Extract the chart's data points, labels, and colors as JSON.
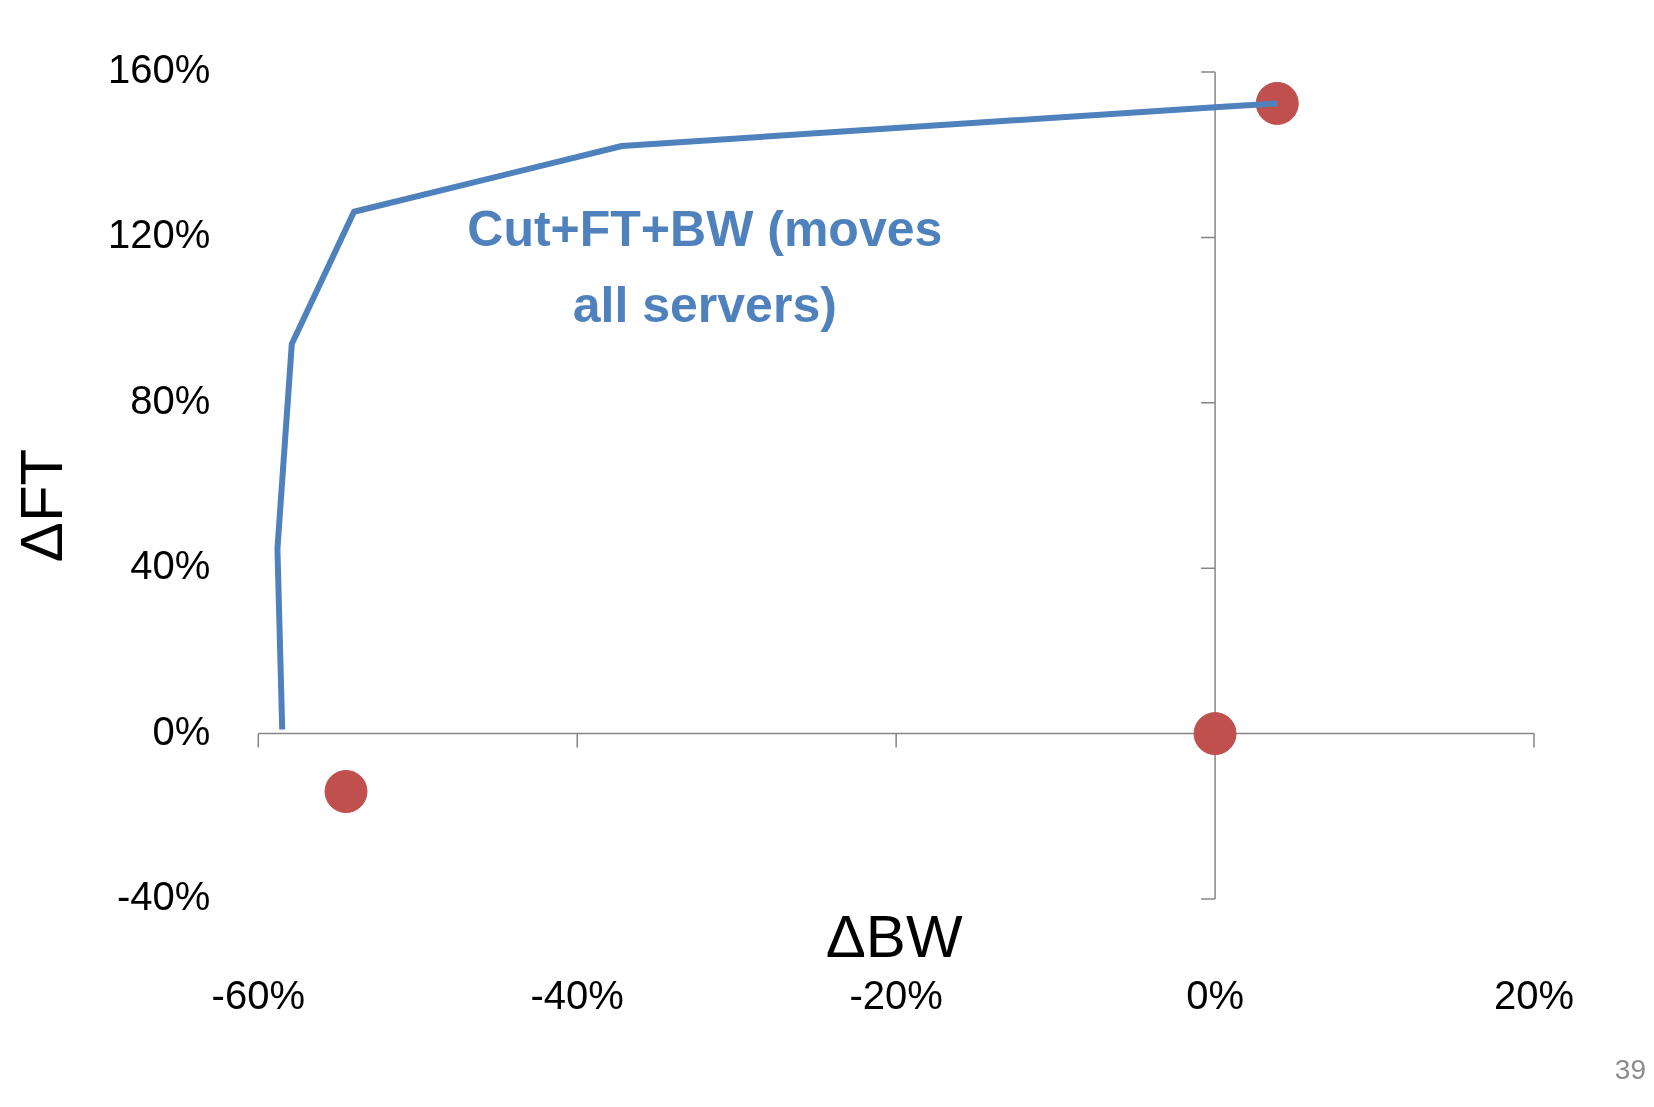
{
  "chart_data": {
    "type": "line",
    "xlabel": "ΔBW",
    "ylabel": "ΔFT",
    "xlim": [
      -60,
      20
    ],
    "xticks": [
      {
        "value": -60,
        "label": "-60%"
      },
      {
        "value": -40,
        "label": "-40%"
      },
      {
        "value": -20,
        "label": "-20%"
      },
      {
        "value": 0,
        "label": "0%"
      },
      {
        "value": 20,
        "label": "20%"
      }
    ],
    "ylim": [
      -40,
      160
    ],
    "yticks": [
      {
        "value": -40,
        "label": "-40%"
      },
      {
        "value": 0,
        "label": "0%"
      },
      {
        "value": 40,
        "label": "40%"
      },
      {
        "value": 80,
        "label": "80%"
      },
      {
        "value": 120,
        "label": "120%"
      },
      {
        "value": 160,
        "label": "160%"
      }
    ],
    "legend": false,
    "annotations": [
      "39"
    ],
    "series": [
      {
        "name": "Cut+FT+BW (moves all servers)",
        "color": "#4f81bd",
        "marker": "none",
        "line_style": "solid",
        "x": [
          -58.5,
          -58.8,
          -57.9,
          -54.0,
          -37.2,
          0,
          3.9
        ],
        "values": [
          1,
          44.7,
          94.2,
          126.2,
          142.1,
          151.5,
          152.4
        ]
      },
      {
        "type": "scatter",
        "color": "#c0504d",
        "marker": "circle",
        "x": [
          -54.5,
          0,
          3.9
        ],
        "values": [
          -14,
          0,
          152.4
        ]
      }
    ]
  }
}
